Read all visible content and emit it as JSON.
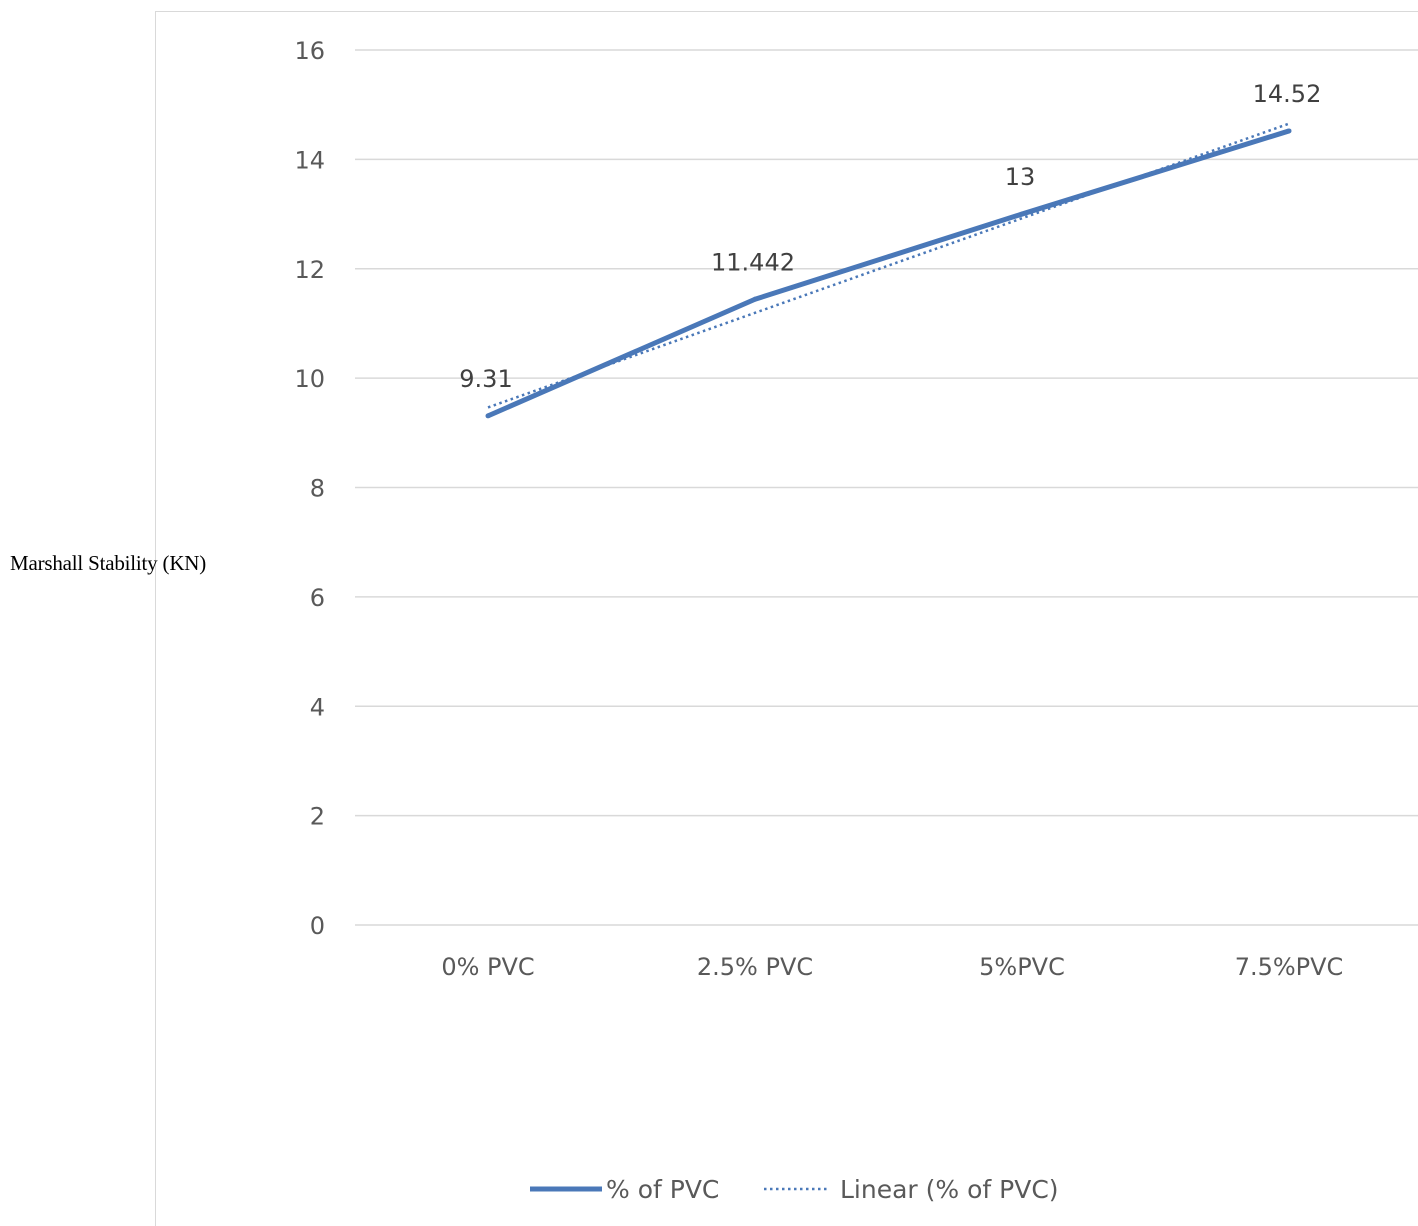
{
  "chart_data": {
    "type": "line",
    "title": "",
    "xlabel": "",
    "ylabel": "Marshall Stability (KN)",
    "categories": [
      "0% PVC",
      "2.5% PVC",
      "5%PVC",
      "7.5%PVC"
    ],
    "ylim": [
      0,
      16
    ],
    "yticks": [
      0,
      2,
      4,
      6,
      8,
      10,
      12,
      14,
      16
    ],
    "grid": "horizontal",
    "legend_position": "bottom",
    "series": [
      {
        "name": "% of PVC",
        "values": [
          9.31,
          11.442,
          13,
          14.52
        ],
        "data_labels": [
          "9.31",
          "11.442",
          "13",
          "14.52"
        ],
        "color": "#4a78b8",
        "style": "solid"
      },
      {
        "name": "Linear (% of PVC)",
        "type": "trendline",
        "values": [
          9.464,
          11.194,
          12.923,
          14.653
        ],
        "color": "#4a78b8",
        "style": "dotted"
      }
    ]
  }
}
